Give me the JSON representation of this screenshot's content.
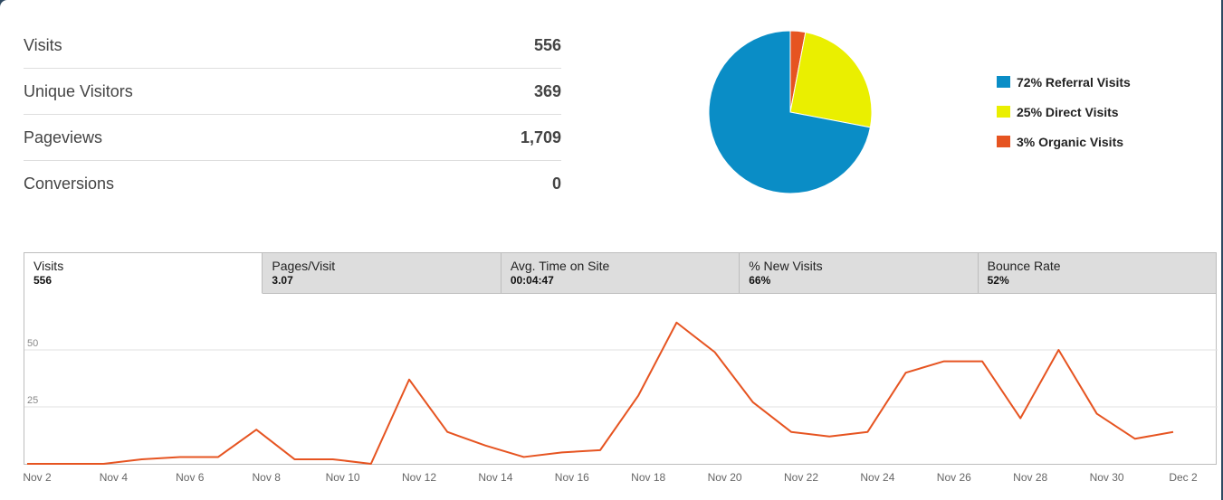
{
  "stats": [
    {
      "label": "Visits",
      "value": "556"
    },
    {
      "label": "Unique Visitors",
      "value": "369"
    },
    {
      "label": "Pageviews",
      "value": "1,709"
    },
    {
      "label": "Conversions",
      "value": "0"
    }
  ],
  "pie": {
    "slices": [
      {
        "label": "72% Referral Visits",
        "pct": 72,
        "color": "#0a8dc6"
      },
      {
        "label": "25% Direct Visits",
        "pct": 25,
        "color": "#eaef00"
      },
      {
        "label": "3% Organic Visits",
        "pct": 3,
        "color": "#e65421"
      }
    ]
  },
  "tabs": [
    {
      "label": "Visits",
      "value": "556",
      "active": true
    },
    {
      "label": "Pages/Visit",
      "value": "3.07",
      "active": false
    },
    {
      "label": "Avg. Time on Site",
      "value": "00:04:47",
      "active": false
    },
    {
      "label": "% New Visits",
      "value": "66%",
      "active": false
    },
    {
      "label": "Bounce Rate",
      "value": "52%",
      "active": false
    }
  ],
  "chart_data": {
    "type": "line",
    "x": [
      "Nov 2",
      "Nov 3",
      "Nov 4",
      "Nov 5",
      "Nov 6",
      "Nov 7",
      "Nov 8",
      "Nov 9",
      "Nov 10",
      "Nov 11",
      "Nov 12",
      "Nov 13",
      "Nov 14",
      "Nov 15",
      "Nov 16",
      "Nov 17",
      "Nov 18",
      "Nov 19",
      "Nov 20",
      "Nov 21",
      "Nov 22",
      "Nov 23",
      "Nov 24",
      "Nov 25",
      "Nov 26",
      "Nov 27",
      "Nov 28",
      "Nov 29",
      "Nov 30",
      "Dec 1",
      "Dec 2"
    ],
    "series": [
      {
        "values": [
          0,
          0,
          0,
          2,
          3,
          3,
          15,
          2,
          2,
          0,
          37,
          14,
          8,
          3,
          5,
          6,
          30,
          62,
          49,
          27,
          14,
          12,
          14,
          40,
          45,
          45,
          20,
          50,
          22,
          11,
          14
        ],
        "color": "#e65421"
      }
    ],
    "xtick_labels": [
      "Nov 2",
      "Nov 4",
      "Nov 6",
      "Nov 8",
      "Nov 10",
      "Nov 12",
      "Nov 14",
      "Nov 16",
      "Nov 18",
      "Nov 20",
      "Nov 22",
      "Nov 24",
      "Nov 26",
      "Nov 28",
      "Nov 30",
      "Dec 2"
    ],
    "yticks": [
      25,
      50
    ],
    "ylim": [
      0,
      75
    ],
    "grid": true
  }
}
